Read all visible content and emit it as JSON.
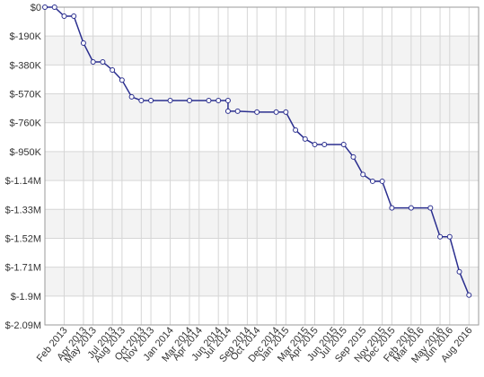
{
  "chart_data": {
    "type": "line",
    "x": [
      "2012-12",
      "2013-01",
      "2013-02",
      "2013-03",
      "2013-04",
      "2013-05",
      "2013-06",
      "2013-07",
      "2013-08",
      "2013-09",
      "2013-10",
      "2013-11",
      "2014-01",
      "2014-03",
      "2014-05",
      "2014-06",
      "2014-07",
      "2014-07",
      "2014-08",
      "2014-10",
      "2014-12",
      "2015-01",
      "2015-02",
      "2015-03",
      "2015-04",
      "2015-05",
      "2015-07",
      "2015-08",
      "2015-09",
      "2015-10",
      "2015-11",
      "2015-12",
      "2016-02",
      "2016-04",
      "2016-05",
      "2016-06",
      "2016-07",
      "2016-08"
    ],
    "series": [
      {
        "color": "#2b2f8f",
        "values": [
          0,
          0,
          -59000,
          -59000,
          -236000,
          -360000,
          -360000,
          -413000,
          -480000,
          -590000,
          -614000,
          -614000,
          -614000,
          -614000,
          -614000,
          -614000,
          -614000,
          -684000,
          -684000,
          -690000,
          -690000,
          -690000,
          -808000,
          -867000,
          -903000,
          -903000,
          -903000,
          -985000,
          -1100000,
          -1145000,
          -1145000,
          -1320000,
          -1320000,
          -1320000,
          -1510000,
          -1510000,
          -1740000,
          -1894000
        ]
      }
    ],
    "xlim": [
      "2012-12",
      "2016-09"
    ],
    "xticks": [
      {
        "value": "2013-02",
        "label": "Feb 2013"
      },
      {
        "value": "2013-04",
        "label": "Apr 2013"
      },
      {
        "value": "2013-05",
        "label": "May 2013"
      },
      {
        "value": "2013-07",
        "label": "Jul 2013"
      },
      {
        "value": "2013-08",
        "label": "Aug 2013"
      },
      {
        "value": "2013-10",
        "label": "Oct 2013"
      },
      {
        "value": "2013-11",
        "label": "Nov 2013"
      },
      {
        "value": "2014-01",
        "label": "Jan 2014"
      },
      {
        "value": "2014-03",
        "label": "Mar 2014"
      },
      {
        "value": "2014-04",
        "label": "Apr 2014"
      },
      {
        "value": "2014-06",
        "label": "Jun 2014"
      },
      {
        "value": "2014-07",
        "label": "Jul 2014"
      },
      {
        "value": "2014-09",
        "label": "Sep 2014"
      },
      {
        "value": "2014-10",
        "label": "Oct 2014"
      },
      {
        "value": "2014-12",
        "label": "Dec 2014"
      },
      {
        "value": "2015-01",
        "label": "Jan 2015"
      },
      {
        "value": "2015-03",
        "label": "Mar 2015"
      },
      {
        "value": "2015-04",
        "label": "Apr 2015"
      },
      {
        "value": "2015-06",
        "label": "Jun 2015"
      },
      {
        "value": "2015-07",
        "label": "Jul 2015"
      },
      {
        "value": "2015-09",
        "label": "Sep 2015"
      },
      {
        "value": "2015-11",
        "label": "Nov 2015"
      },
      {
        "value": "2015-12",
        "label": "Dec 2015"
      },
      {
        "value": "2016-02",
        "label": "Feb 2016"
      },
      {
        "value": "2016-03",
        "label": "Mar 2016"
      },
      {
        "value": "2016-05",
        "label": "May 2016"
      },
      {
        "value": "2016-06",
        "label": "Jun 2016"
      },
      {
        "value": "2016-08",
        "label": "Aug 2016"
      }
    ],
    "ylim": [
      -2090000,
      0
    ],
    "yticks": [
      {
        "value": 0,
        "label": "$0"
      },
      {
        "value": -190000,
        "label": "$-190K"
      },
      {
        "value": -380000,
        "label": "$-380K"
      },
      {
        "value": -570000,
        "label": "$-570K"
      },
      {
        "value": -760000,
        "label": "$-760K"
      },
      {
        "value": -950000,
        "label": "$-950K"
      },
      {
        "value": -1140000,
        "label": "$-1.14M"
      },
      {
        "value": -1330000,
        "label": "$-1.33M"
      },
      {
        "value": -1520000,
        "label": "$-1.52M"
      },
      {
        "value": -1710000,
        "label": "$-1.71M"
      },
      {
        "value": -1900000,
        "label": "$-1.9M"
      },
      {
        "value": -2090000,
        "label": "$-2.09M"
      }
    ],
    "grid": true
  }
}
